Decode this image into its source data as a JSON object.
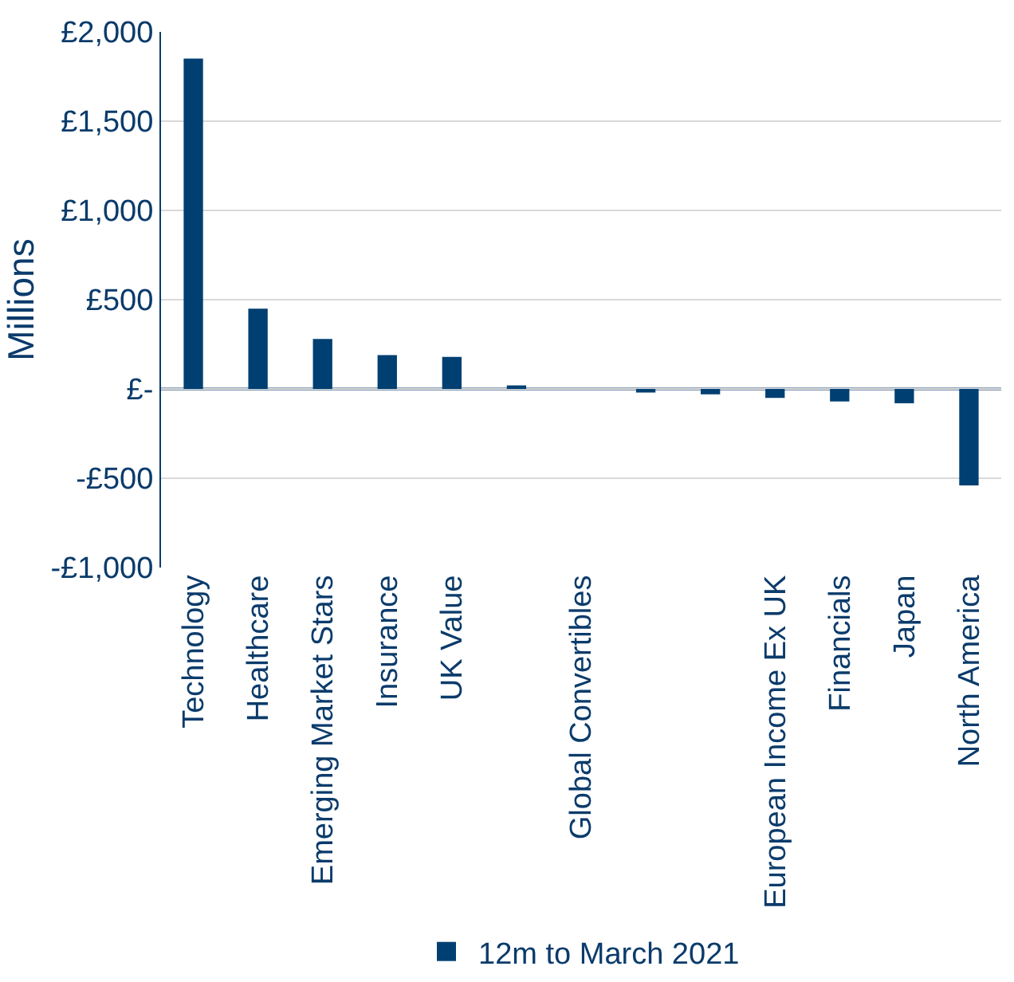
{
  "chart_data": {
    "type": "bar",
    "ylabel": "Millions",
    "categories": [
      "Technology",
      "Healthcare",
      "Emerging Market Stars",
      "Insurance",
      "UK Value",
      null,
      "Global Convertibles",
      null,
      null,
      "European Income Ex UK",
      "Financials",
      "Japan",
      "North America"
    ],
    "series": [
      {
        "name": "12m to March 2021",
        "color": "#003f72",
        "values": [
          1850,
          450,
          280,
          190,
          180,
          20,
          null,
          -20,
          -30,
          -50,
          -70,
          -80,
          -540
        ]
      }
    ],
    "ref_lines": [
      {
        "axis": "y",
        "value": 0,
        "color": "#0b3b6b"
      }
    ],
    "ylim": [
      -1000,
      2000
    ],
    "yticks": [
      {
        "value": -1000,
        "label": "-£1,000"
      },
      {
        "value": -500,
        "label": "-£500"
      },
      {
        "value": 0,
        "label": "£-"
      },
      {
        "value": 500,
        "label": "£500"
      },
      {
        "value": 1000,
        "label": "£1,000"
      },
      {
        "value": 1500,
        "label": "£1,500"
      },
      {
        "value": 2000,
        "label": "£2,000"
      }
    ],
    "grid": "y",
    "legend": "bottom"
  }
}
